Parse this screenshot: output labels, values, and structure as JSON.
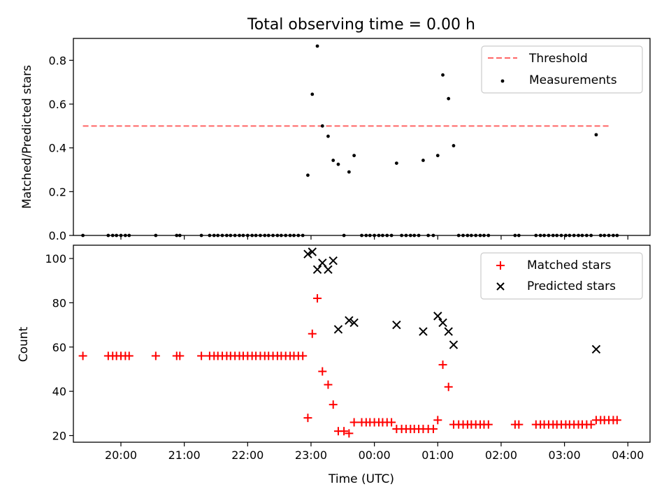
{
  "figure": {
    "title": "Total observing time = 0.00 h"
  },
  "chart_data": [
    {
      "type": "scatter",
      "ylabel": "Matched/Predicted stars",
      "xlabel": "",
      "xlim": [
        19.25,
        28.35
      ],
      "ylim": [
        0,
        0.9
      ],
      "xtick_values": [
        20,
        21,
        22,
        23,
        24,
        25,
        26,
        27,
        28
      ],
      "yticks": [
        0.0,
        0.2,
        0.4,
        0.6,
        0.8
      ],
      "ytick_labels": [
        "0.0",
        "0.2",
        "0.4",
        "0.6",
        "0.8"
      ],
      "legend": {
        "position": "upper-right",
        "entries": [
          "Threshold",
          "Measurements"
        ]
      },
      "series": [
        {
          "name": "Threshold",
          "kind": "dashed-line",
          "color": "#ff6666",
          "points": [
            [
              19.4,
              0.5
            ],
            [
              27.7,
              0.5
            ]
          ]
        },
        {
          "name": "Measurements",
          "kind": "dot",
          "color": "#000000",
          "points": [
            [
              19.4,
              0.0
            ],
            [
              19.8,
              0.0
            ],
            [
              19.87,
              0.0
            ],
            [
              19.93,
              0.0
            ],
            [
              20.0,
              0.0
            ],
            [
              20.07,
              0.0
            ],
            [
              20.13,
              0.0
            ],
            [
              20.55,
              0.0
            ],
            [
              20.88,
              0.0
            ],
            [
              20.93,
              0.0
            ],
            [
              21.27,
              0.0
            ],
            [
              21.4,
              0.0
            ],
            [
              21.47,
              0.0
            ],
            [
              21.53,
              0.0
            ],
            [
              21.6,
              0.0
            ],
            [
              21.67,
              0.0
            ],
            [
              21.73,
              0.0
            ],
            [
              21.8,
              0.0
            ],
            [
              21.87,
              0.0
            ],
            [
              21.93,
              0.0
            ],
            [
              22.0,
              0.0
            ],
            [
              22.07,
              0.0
            ],
            [
              22.13,
              0.0
            ],
            [
              22.2,
              0.0
            ],
            [
              22.27,
              0.0
            ],
            [
              22.33,
              0.0
            ],
            [
              22.4,
              0.0
            ],
            [
              22.47,
              0.0
            ],
            [
              22.53,
              0.0
            ],
            [
              22.6,
              0.0
            ],
            [
              22.67,
              0.0
            ],
            [
              22.73,
              0.0
            ],
            [
              22.8,
              0.0
            ],
            [
              22.87,
              0.0
            ],
            [
              22.95,
              0.275
            ],
            [
              23.02,
              0.645
            ],
            [
              23.1,
              0.865
            ],
            [
              23.18,
              0.5
            ],
            [
              23.27,
              0.453
            ],
            [
              23.35,
              0.343
            ],
            [
              23.43,
              0.325
            ],
            [
              23.52,
              0.0
            ],
            [
              23.6,
              0.29
            ],
            [
              23.68,
              0.365
            ],
            [
              23.8,
              0.0
            ],
            [
              23.87,
              0.0
            ],
            [
              23.93,
              0.0
            ],
            [
              24.0,
              0.0
            ],
            [
              24.07,
              0.0
            ],
            [
              24.13,
              0.0
            ],
            [
              24.2,
              0.0
            ],
            [
              24.27,
              0.0
            ],
            [
              24.35,
              0.33
            ],
            [
              24.43,
              0.0
            ],
            [
              24.5,
              0.0
            ],
            [
              24.57,
              0.0
            ],
            [
              24.63,
              0.0
            ],
            [
              24.7,
              0.0
            ],
            [
              24.77,
              0.343
            ],
            [
              24.85,
              0.0
            ],
            [
              24.93,
              0.0
            ],
            [
              25.0,
              0.365
            ],
            [
              25.08,
              0.733
            ],
            [
              25.17,
              0.625
            ],
            [
              25.25,
              0.41
            ],
            [
              25.33,
              0.0
            ],
            [
              25.4,
              0.0
            ],
            [
              25.47,
              0.0
            ],
            [
              25.53,
              0.0
            ],
            [
              25.6,
              0.0
            ],
            [
              25.67,
              0.0
            ],
            [
              25.73,
              0.0
            ],
            [
              25.8,
              0.0
            ],
            [
              26.22,
              0.0
            ],
            [
              26.28,
              0.0
            ],
            [
              26.55,
              0.0
            ],
            [
              26.62,
              0.0
            ],
            [
              26.68,
              0.0
            ],
            [
              26.75,
              0.0
            ],
            [
              26.82,
              0.0
            ],
            [
              26.88,
              0.0
            ],
            [
              26.95,
              0.0
            ],
            [
              27.02,
              0.0
            ],
            [
              27.08,
              0.0
            ],
            [
              27.15,
              0.0
            ],
            [
              27.22,
              0.0
            ],
            [
              27.28,
              0.0
            ],
            [
              27.35,
              0.0
            ],
            [
              27.42,
              0.0
            ],
            [
              27.5,
              0.46
            ],
            [
              27.57,
              0.0
            ],
            [
              27.63,
              0.0
            ],
            [
              27.7,
              0.0
            ],
            [
              27.77,
              0.0
            ],
            [
              27.83,
              0.0
            ]
          ]
        }
      ]
    },
    {
      "type": "scatter",
      "ylabel": "Count",
      "xlabel": "Time (UTC)",
      "xlim": [
        19.25,
        28.35
      ],
      "ylim": [
        17,
        106
      ],
      "xtick_values": [
        20,
        21,
        22,
        23,
        24,
        25,
        26,
        27,
        28
      ],
      "xtick_labels": [
        "20:00",
        "21:00",
        "22:00",
        "23:00",
        "00:00",
        "01:00",
        "02:00",
        "03:00",
        "04:00"
      ],
      "yticks": [
        20,
        40,
        60,
        80,
        100
      ],
      "ytick_labels": [
        "20",
        "40",
        "60",
        "80",
        "100"
      ],
      "legend": {
        "position": "upper-right",
        "entries": [
          "Matched stars",
          "Predicted stars"
        ]
      },
      "series": [
        {
          "name": "Matched stars",
          "marker": "plus",
          "color": "#ff0000",
          "points": [
            [
              19.4,
              56
            ],
            [
              19.8,
              56
            ],
            [
              19.87,
              56
            ],
            [
              19.93,
              56
            ],
            [
              20.0,
              56
            ],
            [
              20.07,
              56
            ],
            [
              20.13,
              56
            ],
            [
              20.55,
              56
            ],
            [
              20.88,
              56
            ],
            [
              20.93,
              56
            ],
            [
              21.27,
              56
            ],
            [
              21.4,
              56
            ],
            [
              21.47,
              56
            ],
            [
              21.53,
              56
            ],
            [
              21.6,
              56
            ],
            [
              21.67,
              56
            ],
            [
              21.73,
              56
            ],
            [
              21.8,
              56
            ],
            [
              21.87,
              56
            ],
            [
              21.93,
              56
            ],
            [
              22.0,
              56
            ],
            [
              22.07,
              56
            ],
            [
              22.13,
              56
            ],
            [
              22.2,
              56
            ],
            [
              22.27,
              56
            ],
            [
              22.33,
              56
            ],
            [
              22.4,
              56
            ],
            [
              22.47,
              56
            ],
            [
              22.53,
              56
            ],
            [
              22.6,
              56
            ],
            [
              22.67,
              56
            ],
            [
              22.73,
              56
            ],
            [
              22.8,
              56
            ],
            [
              22.87,
              56
            ],
            [
              22.95,
              28
            ],
            [
              23.02,
              66
            ],
            [
              23.1,
              82
            ],
            [
              23.18,
              49
            ],
            [
              23.27,
              43
            ],
            [
              23.35,
              34
            ],
            [
              23.43,
              22
            ],
            [
              23.52,
              22
            ],
            [
              23.6,
              21
            ],
            [
              23.68,
              26
            ],
            [
              23.8,
              26
            ],
            [
              23.87,
              26
            ],
            [
              23.93,
              26
            ],
            [
              24.0,
              26
            ],
            [
              24.07,
              26
            ],
            [
              24.13,
              26
            ],
            [
              24.2,
              26
            ],
            [
              24.27,
              26
            ],
            [
              24.35,
              23
            ],
            [
              24.43,
              23
            ],
            [
              24.5,
              23
            ],
            [
              24.57,
              23
            ],
            [
              24.63,
              23
            ],
            [
              24.7,
              23
            ],
            [
              24.77,
              23
            ],
            [
              24.85,
              23
            ],
            [
              24.93,
              23
            ],
            [
              25.0,
              27
            ],
            [
              25.08,
              52
            ],
            [
              25.17,
              42
            ],
            [
              25.25,
              25
            ],
            [
              25.33,
              25
            ],
            [
              25.4,
              25
            ],
            [
              25.47,
              25
            ],
            [
              25.53,
              25
            ],
            [
              25.6,
              25
            ],
            [
              25.67,
              25
            ],
            [
              25.73,
              25
            ],
            [
              25.8,
              25
            ],
            [
              26.22,
              25
            ],
            [
              26.28,
              25
            ],
            [
              26.55,
              25
            ],
            [
              26.62,
              25
            ],
            [
              26.68,
              25
            ],
            [
              26.75,
              25
            ],
            [
              26.82,
              25
            ],
            [
              26.88,
              25
            ],
            [
              26.95,
              25
            ],
            [
              27.02,
              25
            ],
            [
              27.08,
              25
            ],
            [
              27.15,
              25
            ],
            [
              27.22,
              25
            ],
            [
              27.28,
              25
            ],
            [
              27.35,
              25
            ],
            [
              27.42,
              25
            ],
            [
              27.5,
              27
            ],
            [
              27.57,
              27
            ],
            [
              27.63,
              27
            ],
            [
              27.7,
              27
            ],
            [
              27.77,
              27
            ],
            [
              27.83,
              27
            ]
          ]
        },
        {
          "name": "Predicted stars",
          "marker": "x",
          "color": "#000000",
          "points": [
            [
              22.95,
              102
            ],
            [
              23.02,
              103
            ],
            [
              23.1,
              95
            ],
            [
              23.18,
              98
            ],
            [
              23.27,
              95
            ],
            [
              23.35,
              99
            ],
            [
              23.43,
              68
            ],
            [
              23.6,
              72
            ],
            [
              23.68,
              71
            ],
            [
              24.35,
              70
            ],
            [
              24.77,
              67
            ],
            [
              25.0,
              74
            ],
            [
              25.08,
              71
            ],
            [
              25.17,
              67
            ],
            [
              25.25,
              61
            ],
            [
              27.5,
              59
            ]
          ]
        }
      ]
    }
  ]
}
